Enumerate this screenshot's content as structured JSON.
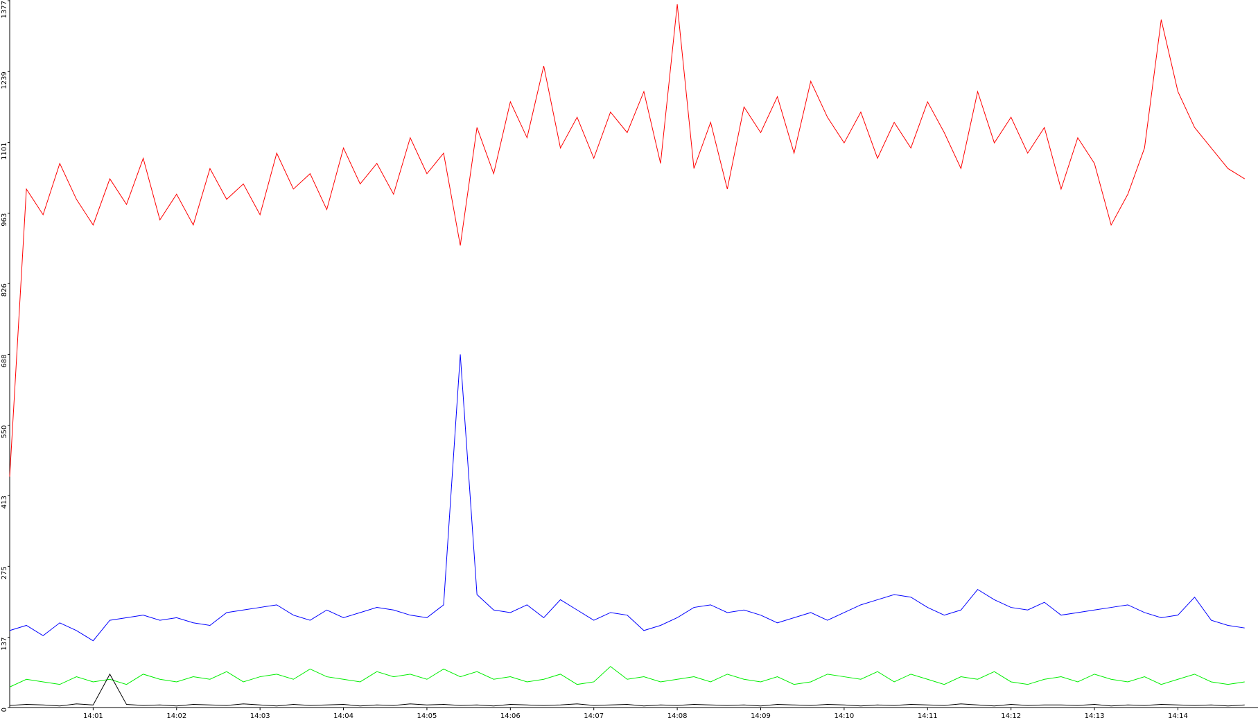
{
  "chart_data": {
    "type": "line",
    "x": [
      0,
      0.2,
      0.4,
      0.6,
      0.8,
      1,
      1.2,
      1.4,
      1.6,
      1.8,
      2,
      2.2,
      2.4,
      2.6,
      2.8,
      3,
      3.2,
      3.4,
      3.6,
      3.8,
      4,
      4.2,
      4.4,
      4.6,
      4.8,
      5,
      5.2,
      5.4,
      5.6,
      5.8,
      6,
      6.2,
      6.4,
      6.6,
      6.8,
      7,
      7.2,
      7.4,
      7.6,
      7.8,
      8,
      8.2,
      8.4,
      8.6,
      8.8,
      9,
      9.2,
      9.4,
      9.6,
      9.8,
      10,
      10.2,
      10.4,
      10.6,
      10.8,
      11,
      11.2,
      11.4,
      11.6,
      11.8,
      12,
      12.2,
      12.4,
      12.6,
      12.8,
      13,
      13.2,
      13.4,
      13.6,
      13.8,
      14,
      14.2,
      14.4,
      14.6,
      14.8
    ],
    "series": [
      {
        "color": "#ff0000",
        "values": [
          450,
          1010,
          960,
          1060,
          990,
          940,
          1030,
          980,
          1070,
          950,
          1000,
          940,
          1050,
          990,
          1020,
          960,
          1080,
          1010,
          1040,
          970,
          1090,
          1020,
          1060,
          1000,
          1110,
          1040,
          1080,
          900,
          1130,
          1040,
          1180,
          1110,
          1250,
          1090,
          1150,
          1070,
          1160,
          1120,
          1200,
          1060,
          1370,
          1050,
          1140,
          1010,
          1170,
          1120,
          1190,
          1080,
          1220,
          1150,
          1100,
          1160,
          1070,
          1140,
          1090,
          1180,
          1120,
          1050,
          1200,
          1100,
          1150,
          1080,
          1130,
          1010,
          1110,
          1060,
          940,
          1000,
          1090,
          1340,
          1200,
          1130,
          1090,
          1050,
          1030
        ]
      },
      {
        "color": "#0000ff",
        "values": [
          150,
          160,
          140,
          165,
          150,
          130,
          170,
          175,
          180,
          170,
          175,
          165,
          160,
          185,
          190,
          195,
          200,
          180,
          170,
          190,
          175,
          185,
          195,
          190,
          180,
          175,
          200,
          688,
          220,
          190,
          185,
          200,
          175,
          210,
          190,
          170,
          185,
          180,
          150,
          160,
          175,
          195,
          200,
          185,
          190,
          180,
          165,
          175,
          185,
          170,
          185,
          200,
          210,
          220,
          215,
          195,
          180,
          190,
          230,
          210,
          195,
          190,
          205,
          180,
          185,
          190,
          195,
          200,
          185,
          175,
          180,
          215,
          170,
          160,
          155
        ]
      },
      {
        "color": "#00ee00",
        "values": [
          40,
          55,
          50,
          45,
          60,
          50,
          55,
          45,
          65,
          55,
          50,
          60,
          55,
          70,
          50,
          60,
          65,
          55,
          75,
          60,
          55,
          50,
          70,
          60,
          65,
          55,
          75,
          60,
          70,
          55,
          60,
          50,
          55,
          65,
          45,
          50,
          80,
          55,
          60,
          50,
          55,
          60,
          50,
          65,
          55,
          50,
          60,
          45,
          50,
          65,
          60,
          55,
          70,
          50,
          65,
          55,
          45,
          60,
          55,
          70,
          50,
          45,
          55,
          60,
          50,
          65,
          55,
          50,
          60,
          45,
          55,
          65,
          50,
          45,
          50
        ]
      },
      {
        "color": "#000000",
        "values": [
          4,
          6,
          5,
          3,
          7,
          5,
          65,
          6,
          4,
          5,
          3,
          6,
          5,
          4,
          7,
          5,
          3,
          6,
          4,
          5,
          6,
          3,
          5,
          4,
          7,
          5,
          6,
          4,
          5,
          3,
          6,
          5,
          4,
          5,
          7,
          4,
          5,
          6,
          3,
          5,
          4,
          6,
          5,
          4,
          5,
          3,
          6,
          5,
          4,
          6,
          5,
          3,
          5,
          4,
          6,
          5,
          4,
          7,
          5,
          3,
          6,
          4,
          5,
          5,
          4,
          6,
          3,
          5,
          4,
          6,
          5,
          4,
          5,
          3,
          5
        ]
      }
    ],
    "xlim": [
      0,
      14.96
    ],
    "xticks": [
      {
        "value": 1,
        "label": "14:01"
      },
      {
        "value": 2,
        "label": "14:02"
      },
      {
        "value": 3,
        "label": "14:03"
      },
      {
        "value": 4,
        "label": "14:04"
      },
      {
        "value": 5,
        "label": "14:05"
      },
      {
        "value": 6,
        "label": "14:06"
      },
      {
        "value": 7,
        "label": "14:07"
      },
      {
        "value": 8,
        "label": "14:08"
      },
      {
        "value": 9,
        "label": "14:09"
      },
      {
        "value": 10,
        "label": "14:10"
      },
      {
        "value": 11,
        "label": "14:11"
      },
      {
        "value": 12,
        "label": "14:12"
      },
      {
        "value": 13,
        "label": "14:13"
      },
      {
        "value": 14,
        "label": "14:14"
      }
    ],
    "ylim": [
      0,
      1377
    ],
    "yticks": [
      0,
      137,
      275,
      413,
      550,
      688,
      826,
      963,
      1101,
      1239,
      1377
    ]
  }
}
